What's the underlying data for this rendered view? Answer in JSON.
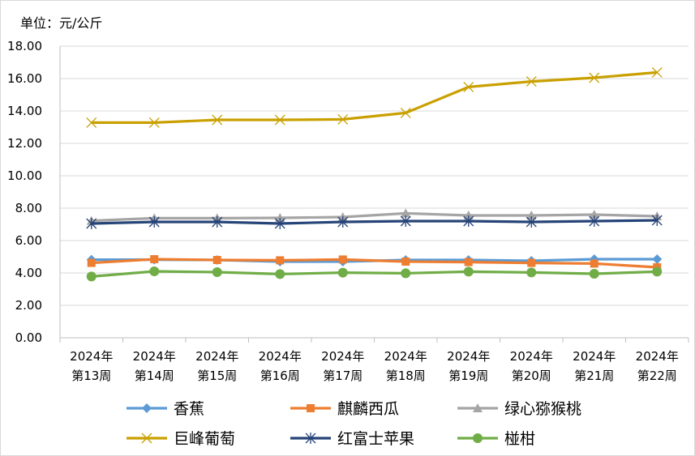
{
  "chart_data": {
    "type": "line",
    "unit_label": "单位：元/公斤",
    "categories": [
      [
        "2024年",
        "第13周"
      ],
      [
        "2024年",
        "第14周"
      ],
      [
        "2024年",
        "第15周"
      ],
      [
        "2024年",
        "第16周"
      ],
      [
        "2024年",
        "第17周"
      ],
      [
        "2024年",
        "第18周"
      ],
      [
        "2024年",
        "第19周"
      ],
      [
        "2024年",
        "第20周"
      ],
      [
        "2024年",
        "第21周"
      ],
      [
        "2024年",
        "第22周"
      ]
    ],
    "y_ticks": [
      "0.00",
      "2.00",
      "4.00",
      "6.00",
      "8.00",
      "10.00",
      "12.00",
      "14.00",
      "16.00",
      "18.00"
    ],
    "ylim": [
      0,
      18
    ],
    "grid": true,
    "legend_position": "bottom",
    "series": [
      {
        "name": "香蕉",
        "color": "#5b9bd5",
        "marker": "diamond",
        "values": [
          4.82,
          4.82,
          4.8,
          4.7,
          4.7,
          4.8,
          4.8,
          4.75,
          4.85,
          4.85
        ]
      },
      {
        "name": "麒麟西瓜",
        "color": "#ed7d31",
        "marker": "square",
        "values": [
          4.62,
          4.85,
          4.8,
          4.78,
          4.83,
          4.7,
          4.67,
          4.62,
          4.58,
          4.35
        ]
      },
      {
        "name": "绿心猕猴桃",
        "color": "#a5a5a5",
        "marker": "triangle",
        "values": [
          7.22,
          7.38,
          7.38,
          7.4,
          7.45,
          7.68,
          7.55,
          7.55,
          7.6,
          7.5
        ]
      },
      {
        "name": "巨峰葡萄",
        "color": "#c9a000",
        "marker": "x",
        "values": [
          13.28,
          13.28,
          13.45,
          13.45,
          13.48,
          13.88,
          15.48,
          15.82,
          16.05,
          16.38
        ]
      },
      {
        "name": "红富士苹果",
        "color": "#264478",
        "marker": "star",
        "values": [
          7.05,
          7.15,
          7.15,
          7.05,
          7.15,
          7.2,
          7.2,
          7.15,
          7.2,
          7.25
        ]
      },
      {
        "name": "椪柑",
        "color": "#70ad47",
        "marker": "circle",
        "values": [
          3.78,
          4.1,
          4.05,
          3.93,
          4.02,
          3.98,
          4.08,
          4.03,
          3.95,
          4.08
        ]
      }
    ]
  }
}
